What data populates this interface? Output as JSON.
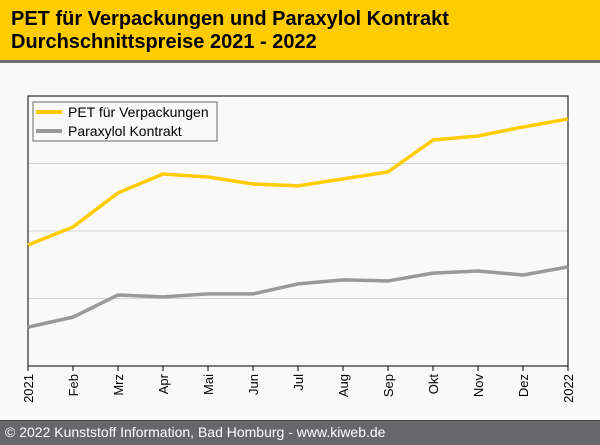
{
  "header": {
    "title_line1": "PET für Verpackungen und Paraxylol Kontrakt",
    "title_line2": "Durchschnittspreise 2021 - 2022"
  },
  "footer": {
    "copyright": "© 2022 Kunststoff Information, Bad Homburg - www.kiweb.de"
  },
  "colors": {
    "header_bg": "#ffcc00",
    "pet": "#ffcc00",
    "paraxylol": "#999999",
    "footer_bg": "#66666b"
  },
  "chart_data": {
    "type": "line",
    "title": "PET für Verpackungen und Paraxylol Kontrakt Durchschnittspreise 2021 - 2022",
    "xlabel": "",
    "ylabel": "",
    "categories": [
      "2021",
      "Feb",
      "Mrz",
      "Apr",
      "Mai",
      "Jun",
      "Jul",
      "Aug",
      "Sep",
      "Okt",
      "Nov",
      "Dez",
      "2022"
    ],
    "ylim": [
      0,
      100
    ],
    "y_unit": "relative index (no y-axis labels shown)",
    "gridlines": [
      25,
      50,
      75
    ],
    "grid": true,
    "legend_position": "top-left",
    "series": [
      {
        "name": "PET für Verpackungen",
        "color": "#ffcc00",
        "values": [
          44.8,
          51.5,
          64.1,
          71.1,
          70.0,
          67.4,
          66.7,
          69.3,
          71.9,
          83.7,
          85.2,
          88.5,
          91.5
        ]
      },
      {
        "name": "Paraxylol Kontrakt",
        "color": "#999999",
        "values": [
          14.4,
          18.1,
          26.3,
          25.6,
          26.7,
          26.7,
          30.4,
          31.9,
          31.5,
          34.4,
          35.2,
          33.7,
          36.7
        ]
      }
    ]
  }
}
